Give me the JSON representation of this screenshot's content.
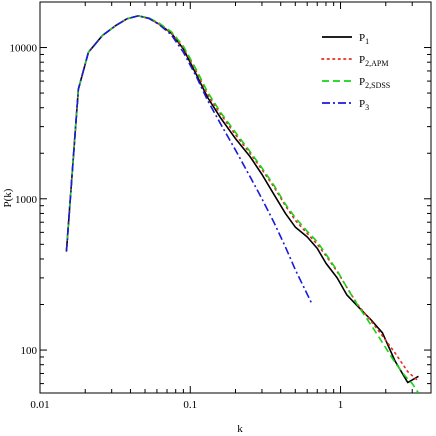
{
  "chart_data": {
    "type": "line",
    "xlabel": "k",
    "ylabel": "P(k)",
    "xscale": "log",
    "yscale": "log",
    "xlim": [
      0.01,
      4
    ],
    "ylim": [
      52,
      20000
    ],
    "xticks": [
      {
        "value": 0.01,
        "label": "0.01"
      },
      {
        "value": 0.1,
        "label": "0.1"
      },
      {
        "value": 1,
        "label": "1"
      }
    ],
    "yticks": [
      {
        "value": 100,
        "label": "100"
      },
      {
        "value": 1000,
        "label": "1000"
      },
      {
        "value": 10000,
        "label": "10000"
      }
    ],
    "grid": false,
    "legend_position": "top-right",
    "series": [
      {
        "name": "P1",
        "label_main": "P",
        "label_sub": "1",
        "color": "#000000",
        "dash": "solid",
        "x": [
          0.015,
          0.018,
          0.021,
          0.026,
          0.032,
          0.038,
          0.045,
          0.053,
          0.062,
          0.075,
          0.09,
          0.11,
          0.13,
          0.16,
          0.2,
          0.25,
          0.3,
          0.36,
          0.43,
          0.5,
          0.6,
          0.7,
          0.8,
          0.95,
          1.1,
          1.3,
          1.6,
          1.9,
          2.3,
          2.8,
          3.3
        ],
        "y": [
          450,
          5300,
          9300,
          12000,
          14000,
          15500,
          16200,
          15600,
          14300,
          12400,
          9800,
          6600,
          4700,
          3400,
          2500,
          1900,
          1450,
          1070,
          800,
          650,
          560,
          470,
          375,
          300,
          232,
          195,
          158,
          130,
          85,
          61,
          67
        ]
      },
      {
        "name": "P2,APM",
        "label_main": "P",
        "label_sub": "2,APM",
        "color": "#e8291c",
        "dash": "dot",
        "x": [
          0.015,
          0.018,
          0.021,
          0.026,
          0.032,
          0.038,
          0.045,
          0.053,
          0.062,
          0.075,
          0.09,
          0.11,
          0.13,
          0.16,
          0.2,
          0.25,
          0.3,
          0.36,
          0.43,
          0.5,
          0.6,
          0.7,
          0.8,
          0.95,
          1.1,
          1.3,
          1.6,
          1.9,
          2.3,
          2.8,
          3.2
        ],
        "y": [
          450,
          5300,
          9300,
          12000,
          14000,
          15500,
          16200,
          15600,
          14300,
          12500,
          10000,
          6900,
          4900,
          3600,
          2650,
          2000,
          1560,
          1200,
          900,
          720,
          590,
          500,
          420,
          330,
          260,
          200,
          155,
          124,
          96,
          72,
          64
        ]
      },
      {
        "name": "P2,SDSS",
        "label_main": "P",
        "label_sub": "2,SDSS",
        "color": "#16d416",
        "dash": "dash",
        "x": [
          0.015,
          0.018,
          0.021,
          0.026,
          0.032,
          0.038,
          0.045,
          0.053,
          0.062,
          0.075,
          0.09,
          0.11,
          0.13,
          0.16,
          0.2,
          0.25,
          0.3,
          0.36,
          0.43,
          0.5,
          0.6,
          0.7,
          0.8,
          0.95,
          1.1,
          1.3,
          1.6,
          1.9,
          2.3,
          2.7,
          3.0,
          3.3
        ],
        "y": [
          450,
          5300,
          9300,
          12000,
          14000,
          15500,
          16200,
          15700,
          14500,
          12700,
          10200,
          7100,
          5100,
          3700,
          2750,
          2050,
          1600,
          1230,
          920,
          750,
          610,
          520,
          430,
          335,
          260,
          198,
          146,
          112,
          83,
          67,
          60,
          52
        ]
      },
      {
        "name": "P3",
        "label_main": "P",
        "label_sub": "3",
        "color": "#1a1ad9",
        "dash": "dashdot",
        "x": [
          0.015,
          0.018,
          0.021,
          0.026,
          0.032,
          0.038,
          0.045,
          0.053,
          0.062,
          0.075,
          0.09,
          0.11,
          0.13,
          0.16,
          0.2,
          0.25,
          0.3,
          0.36,
          0.43,
          0.5,
          0.57,
          0.64
        ],
        "y": [
          450,
          5300,
          9300,
          12000,
          14000,
          15500,
          16200,
          15600,
          14200,
          12100,
          9300,
          6400,
          4500,
          3100,
          2100,
          1400,
          1000,
          700,
          480,
          340,
          260,
          205
        ]
      }
    ]
  }
}
